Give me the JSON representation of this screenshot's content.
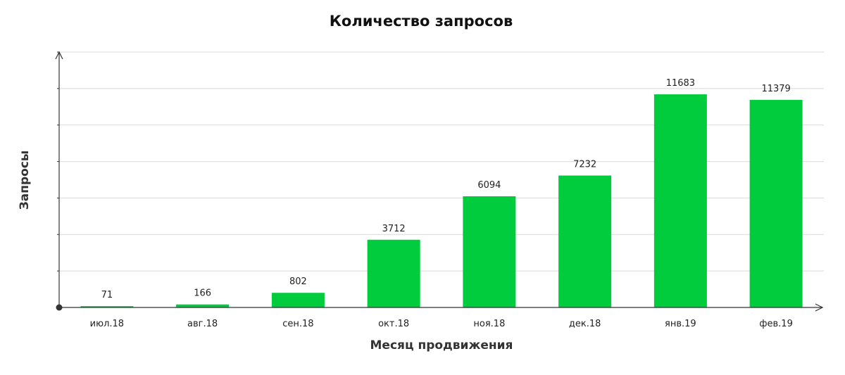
{
  "chart_data": {
    "type": "bar",
    "title": "Количество запросов",
    "xlabel": "Месяц продвижения",
    "ylabel": "Запросы",
    "categories": [
      "июл.18",
      "авг.18",
      "сен.18",
      "окт.18",
      "ноя.18",
      "дек.18",
      "янв.19",
      "фев.19"
    ],
    "values": [
      71,
      166,
      802,
      3712,
      6094,
      7232,
      11683,
      11379
    ],
    "ylim": [
      0,
      14000
    ],
    "grid": true,
    "legend": "none",
    "bar_color": "#00cc3d",
    "grid_color": "#d9d9d9",
    "axis_color": "#333333"
  }
}
